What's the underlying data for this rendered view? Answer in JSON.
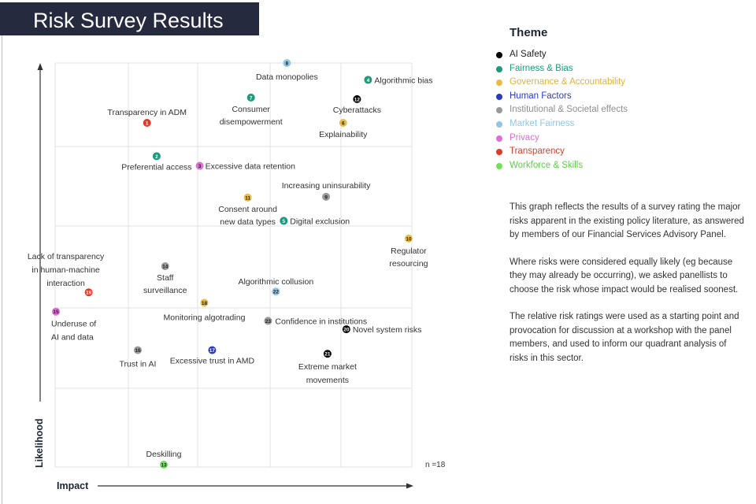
{
  "header": {
    "title": "Risk Survey Results"
  },
  "legend": {
    "title": "Theme",
    "items": [
      {
        "label": "AI Safety",
        "color": "#000000",
        "text_color": "#222222"
      },
      {
        "label": "Fairness & Bias",
        "color": "#1a9c7c",
        "text_color": "#1a9c7c"
      },
      {
        "label": "Governance & Accountability",
        "color": "#e8bd45",
        "text_color": "#e0b23c"
      },
      {
        "label": "Human Factors",
        "color": "#2b3bbf",
        "text_color": "#2b3bbf"
      },
      {
        "label": "Institutional & Societal effects",
        "color": "#9a9a9a",
        "text_color": "#8f8f8f"
      },
      {
        "label": "Market Fairness",
        "color": "#93c5e4",
        "text_color": "#93c5e4"
      },
      {
        "label": "Privacy",
        "color": "#dd6fd6",
        "text_color": "#dd6fd6"
      },
      {
        "label": "Transparency",
        "color": "#e03a2a",
        "text_color": "#e03a2a"
      },
      {
        "label": "Workforce & Skills",
        "color": "#6fe25a",
        "text_color": "#5ccf45"
      }
    ]
  },
  "note": {
    "paragraphs": [
      "This graph reflects the results of a survey rating the major risks apparent in the existing policy literature, as answered by members of our Financial Services Advisory Panel.",
      "Where risks were considered equally likely (eg because they may already be occurring), we asked panellists to choose the risk whose impact would be realised soonest.",
      "The relative risk ratings were used as a starting point and provocation for discussion at a workshop with the panel members, and used to inform our quadrant analysis of risks in this sector."
    ]
  },
  "chart_data": {
    "type": "scatter",
    "xlabel": "Impact",
    "ylabel": "Likelihood",
    "annotation": "n =18",
    "xlim": [
      0,
      100
    ],
    "ylim": [
      0,
      100
    ],
    "grid": true,
    "legend_position": "right",
    "points": [
      {
        "id": "1",
        "label": "Transparency in ADM",
        "theme": "Transparency",
        "x": 25.6,
        "y": 85.1
      },
      {
        "id": "2",
        "label": "Preferential access",
        "theme": "Fairness & Bias",
        "x": 28.3,
        "y": 76.8
      },
      {
        "id": "3",
        "label": "Excessive data retention",
        "theme": "Privacy",
        "x": 40.4,
        "y": 74.4
      },
      {
        "id": "4",
        "label": "Algorithmic bias",
        "theme": "Fairness & Bias",
        "x": 87.7,
        "y": 95.8
      },
      {
        "id": "5",
        "label": "Digital exclusion",
        "theme": "Fairness & Bias",
        "x": 64.0,
        "y": 60.7
      },
      {
        "id": "6",
        "label": "Explainability",
        "theme": "Governance & Accountability",
        "x": 80.7,
        "y": 85.1
      },
      {
        "id": "7",
        "label": "Consumer disempowerment",
        "theme": "Fairness & Bias",
        "x": 54.8,
        "y": 91.4
      },
      {
        "id": "8",
        "label": "Data monopolies",
        "theme": "Market Fairness",
        "x": 64.9,
        "y": 100.0
      },
      {
        "id": "9",
        "label": "Increasing uninsurability",
        "theme": "Institutional & Societal effects",
        "x": 75.9,
        "y": 66.7
      },
      {
        "id": "10",
        "label": "Regulator resourcing",
        "theme": "Governance & Accountability",
        "x": 99.1,
        "y": 56.3
      },
      {
        "id": "11",
        "label": "Consent around new data types",
        "theme": "Governance & Accountability",
        "x": 53.9,
        "y": 66.5
      },
      {
        "id": "12",
        "label": "Cyberattacks",
        "theme": "AI Safety",
        "x": 84.6,
        "y": 91.0
      },
      {
        "id": "13",
        "label": "Deskilling",
        "theme": "Workforce & Skills",
        "x": 30.3,
        "y": 0.0
      },
      {
        "id": "14",
        "label": "Staff surveillance",
        "theme": "Institutional & Societal effects",
        "x": 30.7,
        "y": 49.4
      },
      {
        "id": "15",
        "label": "Underuse of AI and data",
        "theme": "Privacy",
        "x": 0.0,
        "y": 38.1
      },
      {
        "id": "16",
        "label": "Trust in AI",
        "theme": "Institutional & Societal effects",
        "x": 23.0,
        "y": 28.5
      },
      {
        "id": "17",
        "label": "Excessive trust in AMD",
        "theme": "Human Factors",
        "x": 43.9,
        "y": 28.5
      },
      {
        "id": "18",
        "label": "Monitoring algotrading",
        "theme": "Governance & Accountability",
        "x": 41.7,
        "y": 40.3
      },
      {
        "id": "19",
        "label": "Lack of transparency in human-machine interaction",
        "theme": "Transparency",
        "x": 9.2,
        "y": 42.9
      },
      {
        "id": "20",
        "label": "Novel system risks",
        "theme": "AI Safety",
        "x": 81.6,
        "y": 33.7
      },
      {
        "id": "21",
        "label": "Extreme market movements",
        "theme": "AI Safety",
        "x": 76.3,
        "y": 27.6
      },
      {
        "id": "22",
        "label": "Algorithmic collusion",
        "theme": "Market Fairness",
        "x": 61.8,
        "y": 43.1
      },
      {
        "id": "23",
        "label": "Confidence in institutions",
        "theme": "Institutional & Societal effects",
        "x": 59.6,
        "y": 35.8
      }
    ]
  }
}
